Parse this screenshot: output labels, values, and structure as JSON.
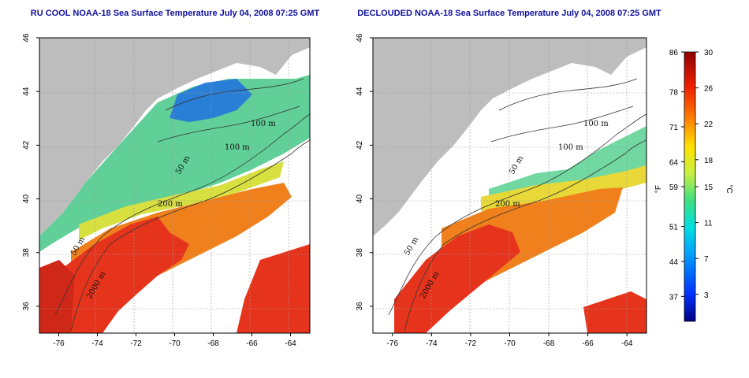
{
  "panels": [
    {
      "title": "RU COOL NOAA-18 Sea Surface Temperature July 04, 2008 07:25 GMT",
      "contour_labels": [
        "100 m",
        "100 m",
        "50 m",
        "200 m",
        "50 m",
        "2000 m"
      ]
    },
    {
      "title": "DECLOUDED NOAA-18 Sea Surface Temperature July 04, 2008 07:25 GMT",
      "contour_labels": [
        "100 m",
        "100 m",
        "50 m",
        "200 m",
        "50 m",
        "2000 m"
      ]
    }
  ],
  "axes": {
    "lon_ticks": [
      "-76",
      "-74",
      "-72",
      "-70",
      "-68",
      "-66",
      "-64"
    ],
    "lat_ticks": [
      "36",
      "38",
      "40",
      "42",
      "44",
      "46"
    ],
    "lon_range": [
      -77,
      -63
    ],
    "lat_range": [
      35,
      46
    ]
  },
  "colorbar": {
    "fahrenheit_ticks": [
      "37",
      "44",
      "51",
      "59",
      "64",
      "71",
      "78",
      "86"
    ],
    "celsius_ticks": [
      "3",
      "7",
      "11",
      "15",
      "18",
      "22",
      "26",
      "30"
    ],
    "fahrenheit_label": "°F",
    "celsius_label": "°C",
    "colors": [
      "#0000a0",
      "#0030ff",
      "#00a0ff",
      "#00e0e0",
      "#40e080",
      "#c0f040",
      "#ffe000",
      "#ff8000",
      "#ff2000",
      "#c00000",
      "#800000"
    ]
  },
  "colors": {
    "land": "#bdbdbd",
    "cloud": "#ffffff",
    "warm": "#e8321c",
    "mid": "#f07a1c",
    "cool": "#60d0a0",
    "cold": "#1060e0"
  }
}
